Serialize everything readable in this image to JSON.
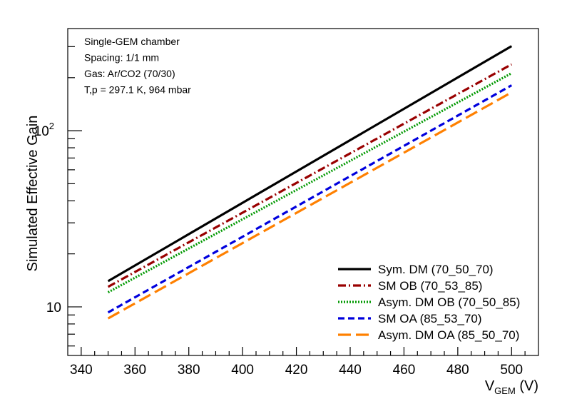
{
  "chart_data": {
    "type": "line",
    "title": "",
    "xlabel": {
      "main": "V",
      "sub": "GEM",
      "unit": " (V)"
    },
    "ylabel": "Simulated Effective Gain",
    "xlim": [
      335,
      510
    ],
    "ylim": [
      5.3,
      380
    ],
    "yscale": "log",
    "grid": false,
    "legend_position": "bottom-right",
    "x_ticks": [
      340,
      360,
      380,
      400,
      420,
      440,
      460,
      480,
      500
    ],
    "x_tick_labels": [
      "340",
      "360",
      "380",
      "400",
      "420",
      "440",
      "460",
      "480",
      "500"
    ],
    "y_ticks": [
      {
        "value": 10,
        "label": "10",
        "exponent": ""
      },
      {
        "value": 100,
        "label": "10",
        "exponent": "2"
      }
    ],
    "annotations": [
      "Single-GEM chamber",
      "Spacing: 1/1 mm",
      "Gas: Ar/CO2 (70/30)",
      "T,p = 297.1 K, 964 mbar"
    ],
    "series": [
      {
        "name": "Sym. DM (70_50_70)",
        "color": "#000000",
        "style": "solid",
        "x": [
          350,
          500
        ],
        "y": [
          14,
          302
        ]
      },
      {
        "name": "SM OB (70_53_85)",
        "color": "#990000",
        "style": "dashdot",
        "x": [
          350,
          500
        ],
        "y": [
          13,
          238
        ]
      },
      {
        "name": "Asym. DM OB (70_50_85)",
        "color": "#009900",
        "style": "dotted",
        "x": [
          350,
          500
        ],
        "y": [
          12.1,
          212
        ]
      },
      {
        "name": "SM OA (85_53_70)",
        "color": "#0000dd",
        "style": "dashed",
        "x": [
          350,
          500
        ],
        "y": [
          9.3,
          181
        ]
      },
      {
        "name": "Asym. DM OA (85_50_70)",
        "color": "#ff8000",
        "style": "longdash",
        "x": [
          350,
          500
        ],
        "y": [
          8.6,
          165
        ]
      }
    ]
  }
}
